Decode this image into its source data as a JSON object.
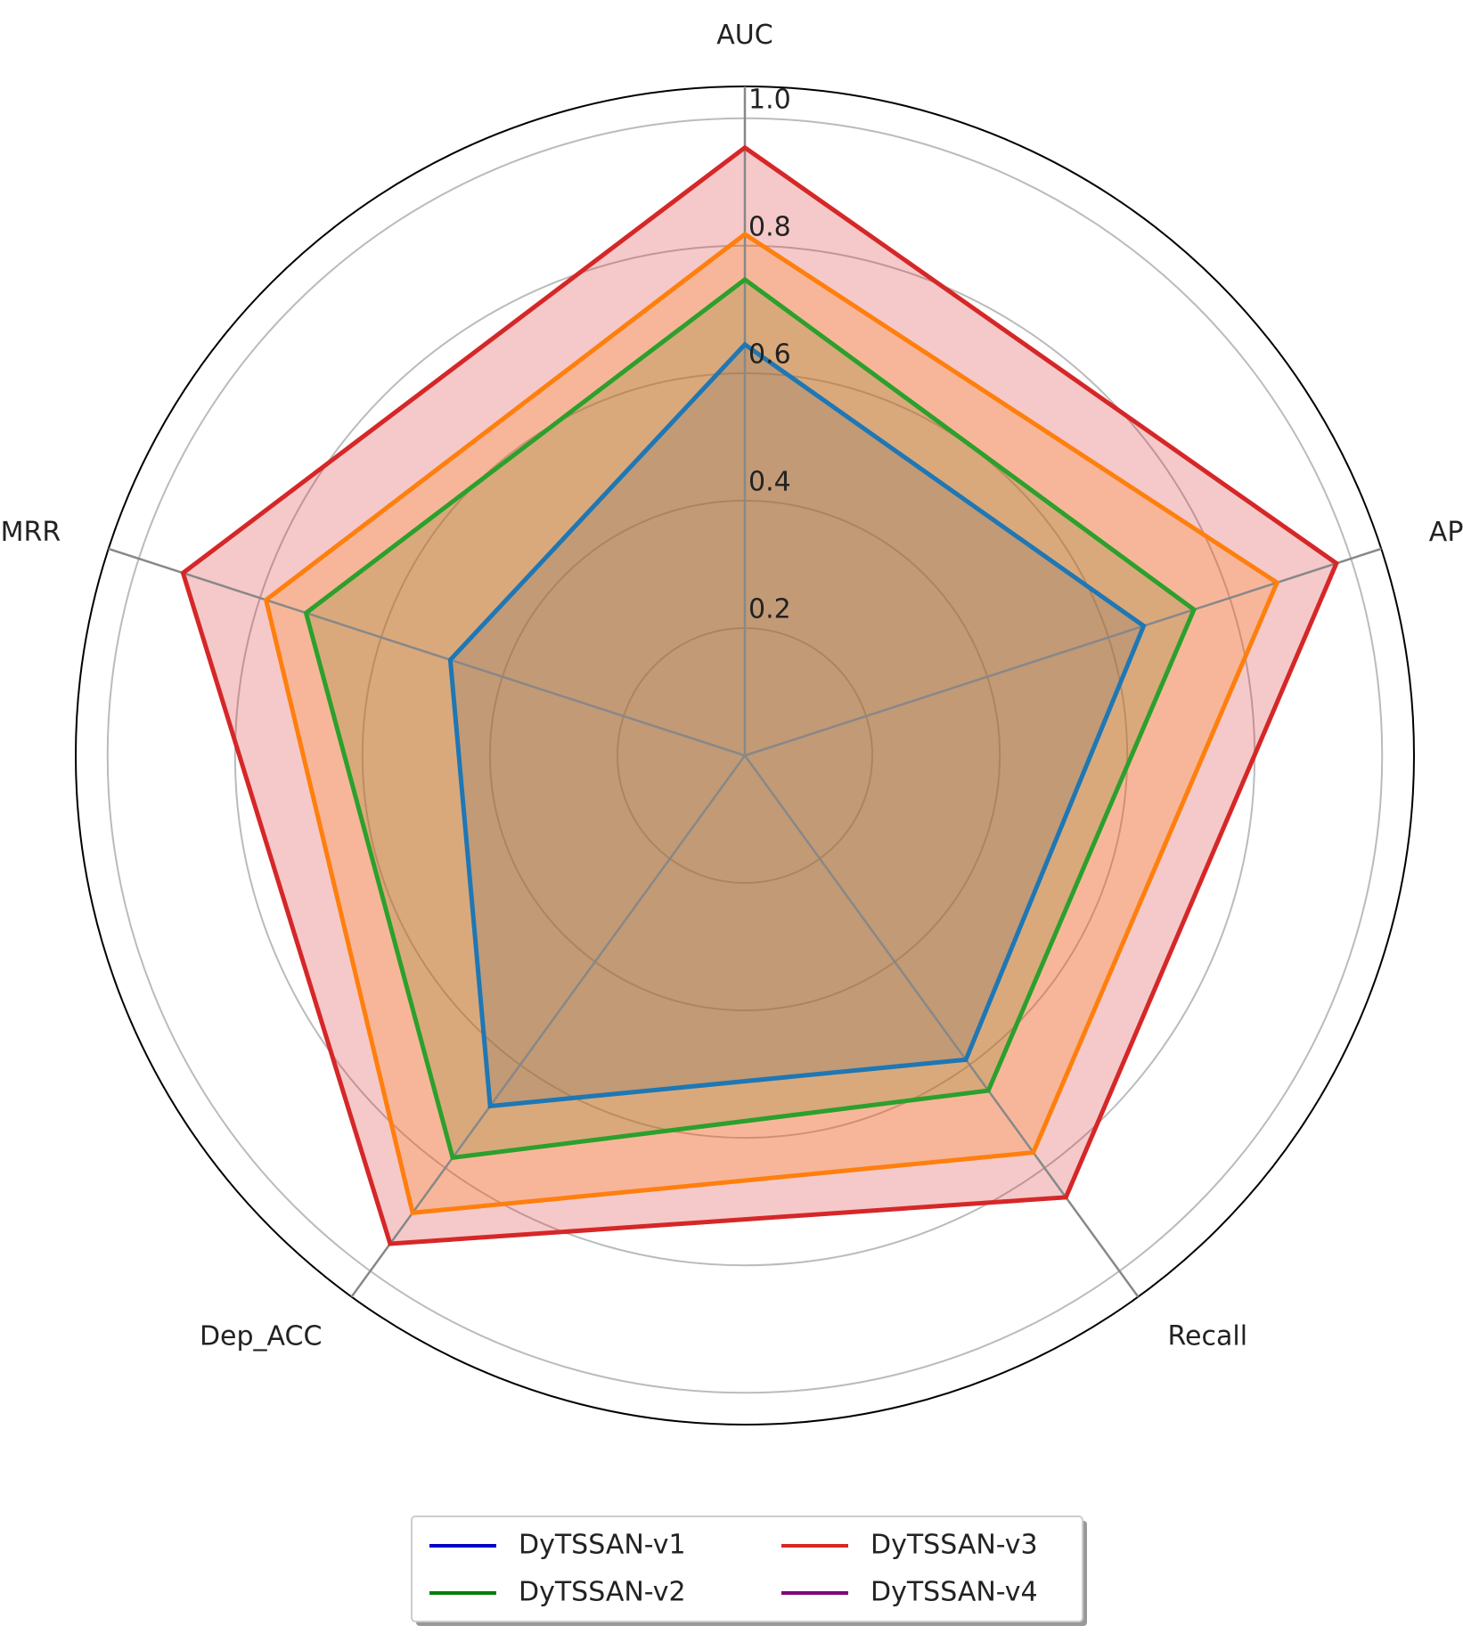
{
  "chart_data": {
    "type": "radar",
    "categories": [
      "AUC",
      "AP",
      "Recall",
      "Dep_ACC",
      "MRR"
    ],
    "series": [
      {
        "name": "DyTSSAN-v1",
        "color": "#1f77b4",
        "legend_color": "#0000cc",
        "values": [
          0.645,
          0.658,
          0.59,
          0.68,
          0.486
        ]
      },
      {
        "name": "DyTSSAN-v2",
        "color": "#2ca02c",
        "legend_color": "#008000",
        "values": [
          0.747,
          0.741,
          0.65,
          0.78,
          0.724
        ]
      },
      {
        "name": "DyTSSAN-v3",
        "color": "#d62728",
        "legend_color": "#d62728",
        "values": [
          0.954,
          0.976,
          0.857,
          0.947,
          0.927
        ]
      },
      {
        "name": "DyTSSAN-v4",
        "color": "#ff7f0e",
        "legend_color": "#800080",
        "values": [
          0.818,
          0.878,
          0.77,
          0.887,
          0.79
        ]
      }
    ],
    "ylim": [
      0,
      1.05
    ],
    "yticks": [
      0.2,
      0.4,
      0.6,
      0.8,
      {
        "value": 1.0,
        "label": "1.0"
      }
    ],
    "grid": true,
    "legend": "bottom"
  }
}
